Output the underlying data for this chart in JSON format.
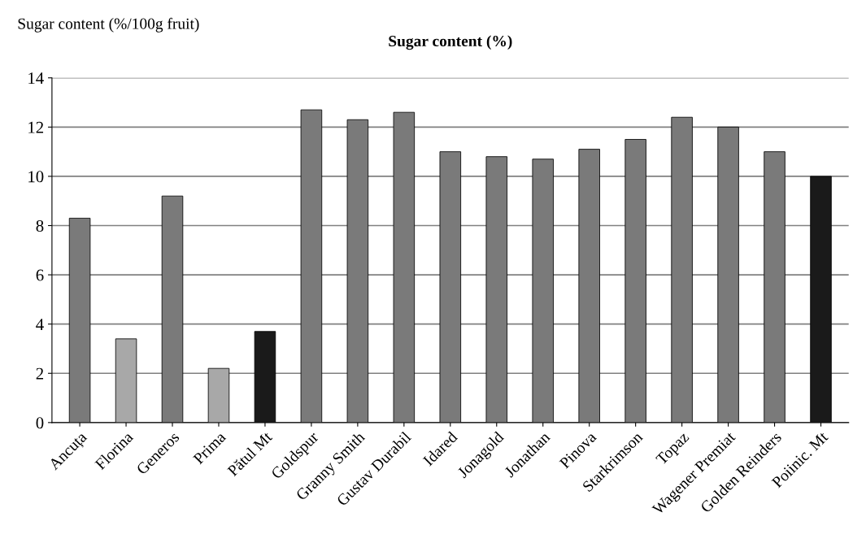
{
  "chart_data": {
    "type": "bar",
    "title": "Sugar content (%)",
    "ylabel": "Sugar content (%/100g fruit)",
    "categories": [
      "Ancuța",
      "Florina",
      "Generos",
      "Prima",
      "Pătul Mt",
      "Goldspur",
      "Granny Smith",
      "Gustav Durabil",
      "Idared",
      "Jonagold",
      "Jonathan",
      "Pinova",
      "Starkrimson",
      "Topaz",
      "Wagener Premiat",
      "Golden Reinders",
      "Poiinic. Mt"
    ],
    "values": [
      8.3,
      3.4,
      9.2,
      2.2,
      3.7,
      12.7,
      12.3,
      12.6,
      11.0,
      10.8,
      10.7,
      11.1,
      11.5,
      12.4,
      12.0,
      11.0,
      10.0
    ],
    "colors": [
      "#7a7a7a",
      "#a8a8a8",
      "#7a7a7a",
      "#a8a8a8",
      "#1a1a1a",
      "#7a7a7a",
      "#7a7a7a",
      "#7a7a7a",
      "#7a7a7a",
      "#7a7a7a",
      "#7a7a7a",
      "#7a7a7a",
      "#7a7a7a",
      "#7a7a7a",
      "#7a7a7a",
      "#7a7a7a",
      "#1a1a1a"
    ],
    "ylim": [
      0,
      14
    ],
    "yticks": [
      0,
      2,
      4,
      6,
      8,
      10,
      12,
      14
    ],
    "grid": "y"
  }
}
